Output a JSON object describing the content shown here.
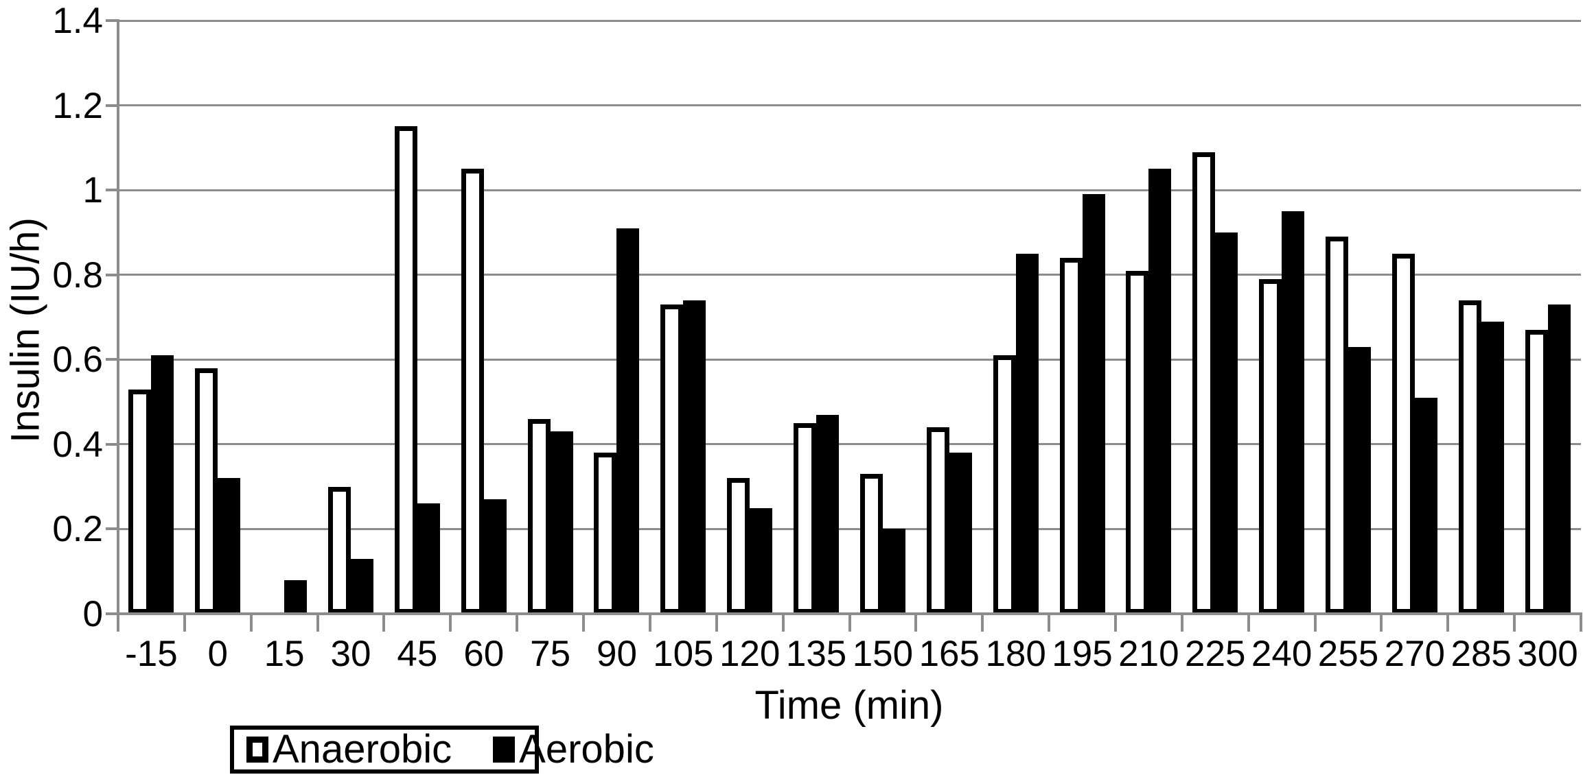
{
  "chart_data": {
    "type": "bar",
    "title": "",
    "xlabel": "Time (min)",
    "ylabel": "Insulin (IU/h)",
    "categories": [
      "-15",
      "0",
      "15",
      "30",
      "45",
      "60",
      "75",
      "90",
      "105",
      "120",
      "135",
      "150",
      "165",
      "180",
      "195",
      "210",
      "225",
      "240",
      "255",
      "270",
      "285",
      "300"
    ],
    "series": [
      {
        "name": "Anaerobic",
        "style": "white-fill-black-outline",
        "values": [
          0.53,
          0.58,
          0,
          0.3,
          1.15,
          1.05,
          0.46,
          0.38,
          0.73,
          0.32,
          0.45,
          0.33,
          0.44,
          0.61,
          0.84,
          0.81,
          1.09,
          0.79,
          0.89,
          0.85,
          0.74,
          0.67
        ]
      },
      {
        "name": "Aerobic",
        "style": "black-fill",
        "values": [
          0.61,
          0.32,
          0.08,
          0.13,
          0.26,
          0.27,
          0.43,
          0.91,
          0.74,
          0.25,
          0.47,
          0.2,
          0.38,
          0.85,
          0.99,
          1.05,
          0.9,
          0.95,
          0.63,
          0.51,
          0.69,
          0.73
        ]
      }
    ],
    "ylim": [
      0,
      1.4
    ],
    "y_ticks": [
      "0",
      "0.2",
      "0.4",
      "0.6",
      "0.8",
      "1",
      "1.2",
      "1.4"
    ],
    "y_tick_values": [
      0,
      0.2,
      0.4,
      0.6,
      0.8,
      1.0,
      1.2,
      1.4
    ],
    "grid": true,
    "legend_position": "bottom-left",
    "colors": {
      "anaerobic_fill": "#ffffff",
      "anaerobic_outline": "#000000",
      "aerobic_fill": "#000000",
      "gridline": "#8c8c8c",
      "axis": "#8c8c8c",
      "text": "#000000",
      "background": "#ffffff"
    }
  }
}
